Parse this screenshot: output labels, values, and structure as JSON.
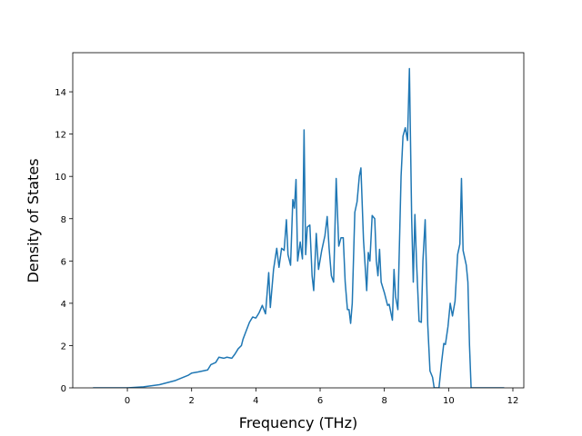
{
  "chart_data": {
    "type": "line",
    "xlabel": "Frequency (THz)",
    "ylabel": "Density of States",
    "x": [
      -1.07,
      0,
      0.5,
      1,
      1.5,
      1.9,
      2.0,
      2.2,
      2.5,
      2.6,
      2.75,
      2.85,
      3.0,
      3.1,
      3.25,
      3.35,
      3.45,
      3.55,
      3.6,
      3.7,
      3.8,
      3.9,
      4.0,
      4.1,
      4.2,
      4.3,
      4.4,
      4.45,
      4.55,
      4.65,
      4.72,
      4.8,
      4.88,
      4.95,
      5.0,
      5.08,
      5.15,
      5.2,
      5.25,
      5.3,
      5.38,
      5.45,
      5.5,
      5.55,
      5.6,
      5.68,
      5.75,
      5.8,
      5.88,
      5.95,
      6.05,
      6.15,
      6.22,
      6.28,
      6.35,
      6.42,
      6.5,
      6.58,
      6.65,
      6.72,
      6.78,
      6.85,
      6.9,
      6.95,
      7.0,
      7.08,
      7.15,
      7.22,
      7.27,
      7.35,
      7.45,
      7.5,
      7.55,
      7.62,
      7.7,
      7.75,
      7.8,
      7.85,
      7.9,
      8.0,
      8.1,
      8.15,
      8.25,
      8.3,
      8.35,
      8.42,
      8.52,
      8.58,
      8.65,
      8.72,
      8.78,
      8.85,
      8.9,
      8.95,
      9.0,
      9.08,
      9.15,
      9.2,
      9.27,
      9.35,
      9.42,
      9.5,
      9.55,
      9.7,
      9.78,
      9.85,
      9.9,
      9.98,
      10.05,
      10.12,
      10.2,
      10.28,
      10.35,
      10.4,
      10.45,
      10.55,
      10.6,
      10.65,
      10.7,
      11.73
    ],
    "values": [
      0,
      0,
      0.05,
      0.15,
      0.35,
      0.6,
      0.7,
      0.75,
      0.85,
      1.1,
      1.2,
      1.45,
      1.4,
      1.45,
      1.4,
      1.6,
      1.85,
      2.0,
      2.3,
      2.7,
      3.1,
      3.35,
      3.3,
      3.55,
      3.9,
      3.5,
      5.45,
      3.8,
      5.6,
      6.6,
      5.7,
      6.6,
      6.5,
      7.95,
      6.3,
      5.8,
      8.9,
      8.5,
      9.85,
      6.0,
      6.9,
      6.1,
      12.2,
      6.3,
      7.6,
      7.7,
      5.3,
      4.6,
      7.3,
      5.6,
      6.5,
      7.2,
      8.1,
      6.6,
      5.3,
      5.0,
      9.9,
      6.7,
      7.1,
      7.1,
      5.0,
      3.7,
      3.7,
      3.05,
      4.0,
      8.3,
      8.8,
      10.0,
      10.4,
      7.0,
      4.6,
      6.4,
      6.0,
      8.15,
      8.0,
      6.0,
      5.3,
      6.55,
      5.0,
      4.5,
      3.9,
      3.95,
      3.2,
      5.6,
      4.3,
      3.7,
      10.0,
      11.9,
      12.3,
      11.7,
      15.1,
      8.0,
      5.0,
      8.2,
      6.0,
      3.15,
      3.1,
      6.0,
      7.95,
      3.0,
      0.8,
      0.5,
      0,
      0,
      1.2,
      2.1,
      2.05,
      2.9,
      4.0,
      3.4,
      4.1,
      6.3,
      6.8,
      9.9,
      6.5,
      5.8,
      5.0,
      2.0,
      0,
      0
    ],
    "color": "#1f77b4",
    "xlim": [
      -1.7,
      12.34
    ],
    "xticks": [
      0,
      2,
      4,
      6,
      8,
      10,
      12
    ],
    "ylim": [
      0,
      15.85
    ],
    "yticks": [
      0,
      2,
      4,
      6,
      8,
      10,
      12,
      14
    ]
  }
}
